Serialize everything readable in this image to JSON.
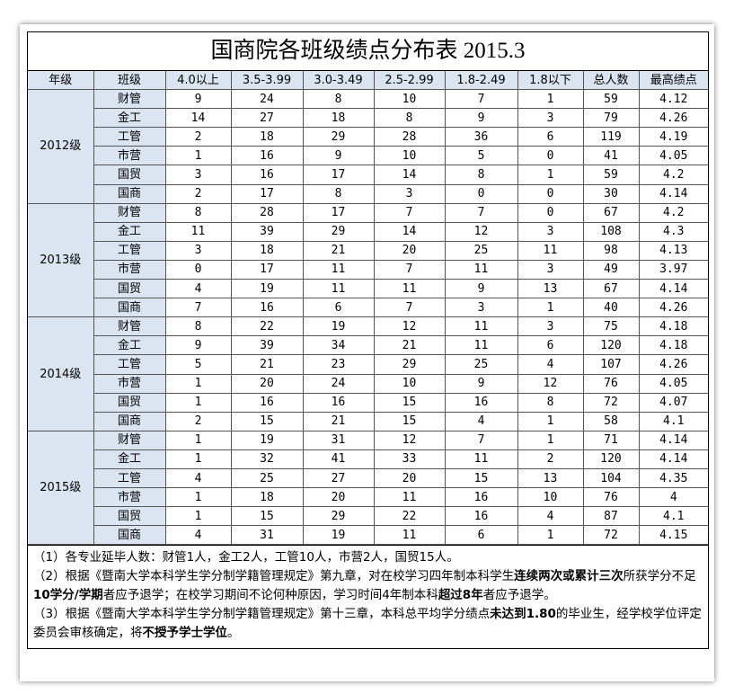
{
  "title": "国商院各班级绩点分布表 2015.3",
  "header": [
    "年级",
    "班级",
    "4.0以上",
    "3.5-3.99",
    "3.0-3.49",
    "2.5-2.99",
    "1.8-2.49",
    "1.8以下",
    "总人数",
    "最高绩点"
  ],
  "groups": [
    {
      "grade": "2012级",
      "rows": [
        [
          "财管",
          9,
          24,
          8,
          10,
          7,
          1,
          59,
          4.12
        ],
        [
          "金工",
          14,
          27,
          18,
          8,
          9,
          3,
          79,
          4.26
        ],
        [
          "工管",
          2,
          18,
          29,
          28,
          36,
          6,
          119,
          4.19
        ],
        [
          "市营",
          1,
          16,
          9,
          10,
          5,
          0,
          41,
          4.05
        ],
        [
          "国贸",
          3,
          16,
          17,
          14,
          8,
          1,
          59,
          4.2
        ],
        [
          "国商",
          2,
          17,
          8,
          3,
          0,
          0,
          30,
          4.14
        ]
      ]
    },
    {
      "grade": "2013级",
      "rows": [
        [
          "财管",
          8,
          28,
          17,
          7,
          7,
          0,
          67,
          4.2
        ],
        [
          "金工",
          11,
          39,
          29,
          14,
          12,
          3,
          108,
          4.3
        ],
        [
          "工管",
          3,
          18,
          21,
          20,
          25,
          11,
          98,
          4.13
        ],
        [
          "市营",
          0,
          17,
          11,
          7,
          11,
          3,
          49,
          3.97
        ],
        [
          "国贸",
          4,
          19,
          11,
          11,
          9,
          13,
          67,
          4.14
        ],
        [
          "国商",
          7,
          16,
          6,
          7,
          3,
          1,
          40,
          4.26
        ]
      ]
    },
    {
      "grade": "2014级",
      "rows": [
        [
          "财管",
          8,
          22,
          19,
          12,
          11,
          3,
          75,
          4.18
        ],
        [
          "金工",
          9,
          39,
          34,
          21,
          11,
          6,
          120,
          4.18
        ],
        [
          "工管",
          5,
          21,
          23,
          29,
          25,
          4,
          107,
          4.26
        ],
        [
          "市营",
          1,
          20,
          24,
          10,
          9,
          12,
          76,
          4.05
        ],
        [
          "国贸",
          1,
          16,
          16,
          15,
          16,
          8,
          72,
          4.07
        ],
        [
          "国商",
          2,
          15,
          21,
          15,
          4,
          1,
          58,
          4.1
        ]
      ]
    },
    {
      "grade": "2015级",
      "rows": [
        [
          "财管",
          1,
          19,
          31,
          12,
          7,
          1,
          71,
          4.14
        ],
        [
          "金工",
          1,
          32,
          41,
          33,
          11,
          2,
          120,
          4.14
        ],
        [
          "工管",
          4,
          25,
          27,
          20,
          15,
          13,
          104,
          4.35
        ],
        [
          "市营",
          1,
          18,
          20,
          11,
          16,
          10,
          76,
          4
        ],
        [
          "国贸",
          1,
          15,
          29,
          22,
          16,
          4,
          87,
          4.1
        ],
        [
          "国商",
          4,
          31,
          19,
          11,
          6,
          1,
          72,
          4.15
        ]
      ]
    }
  ],
  "notes": [
    [
      "（1）各专业延毕人数：财管1人，金工2人，工管10人，市营2人，国贸15人。"
    ],
    [
      "（2）根据《暨南大学本科学生学分制学籍管理规定》第九章，对在校学习四年制本科学生",
      "连续两次或累计三次",
      "所获学分不足",
      "10学分/学期",
      "者应予退学；在校学习期间不论何种原因，学习时间4年制本科",
      "超过8年",
      "者应予退学。"
    ],
    [
      "（3）根据《暨南大学本科学生学分制学籍管理规定》第十三章，本科总平均学分绩点",
      "未达到1.80",
      "的毕业生，经学校学位评定委员会审核确定，将",
      "不授予学士学位",
      "。"
    ]
  ]
}
